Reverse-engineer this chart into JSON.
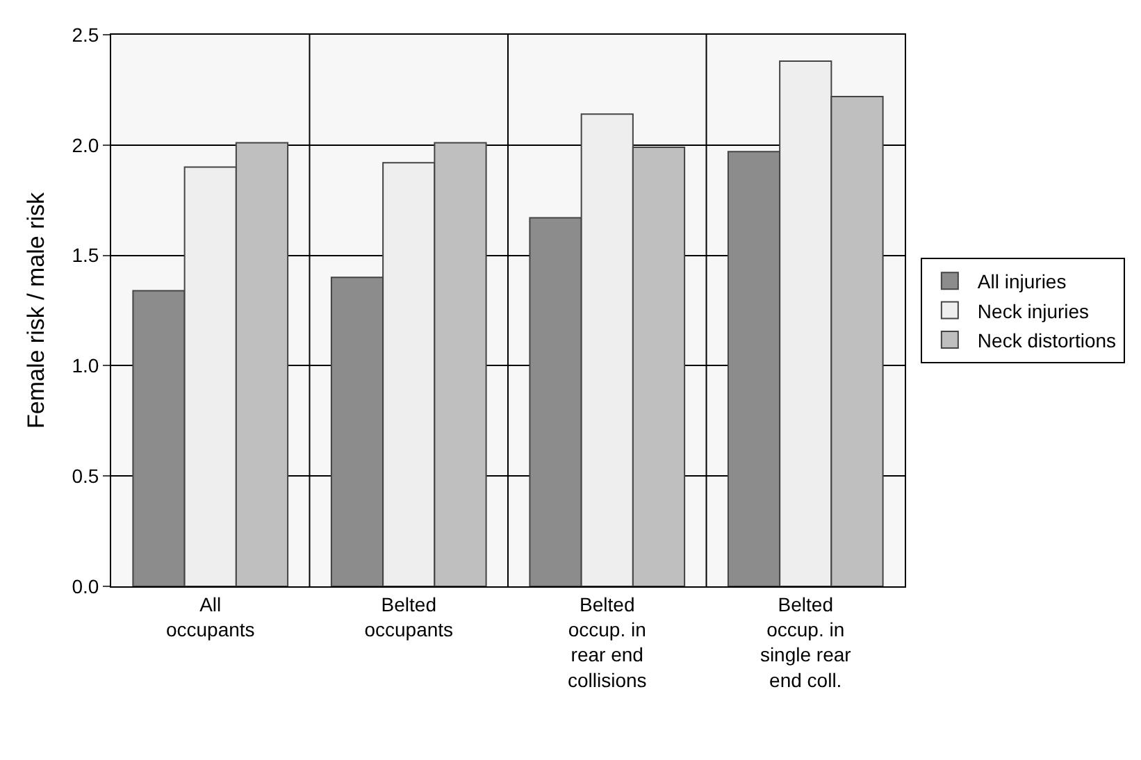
{
  "chart_data": {
    "type": "bar",
    "ylabel": "Female risk / male risk",
    "categories": [
      "All occupants",
      "Belted occupants",
      "Belted occup. in rear end collisions",
      "Belted occup. in single rear end coll."
    ],
    "series": [
      {
        "name": "All injuries",
        "color": "#8c8c8c",
        "values": [
          1.34,
          1.4,
          1.67,
          1.97
        ]
      },
      {
        "name": "Neck injuries",
        "color": "#eeeeee",
        "values": [
          1.9,
          1.92,
          2.14,
          2.38
        ]
      },
      {
        "name": "Neck distortions",
        "color": "#bfbfbf",
        "values": [
          2.01,
          2.01,
          1.99,
          2.22
        ]
      }
    ],
    "ylim": [
      0,
      2.5
    ],
    "yticks": [
      {
        "value": 0,
        "label": "0.0"
      },
      {
        "value": 0.5,
        "label": "0.5"
      },
      {
        "value": 1,
        "label": "1.0"
      },
      {
        "value": 1.5,
        "label": "1.5"
      },
      {
        "value": 2,
        "label": "2.0"
      },
      {
        "value": 2.5,
        "label": "2.5"
      }
    ],
    "grid": true,
    "legend": "right"
  }
}
